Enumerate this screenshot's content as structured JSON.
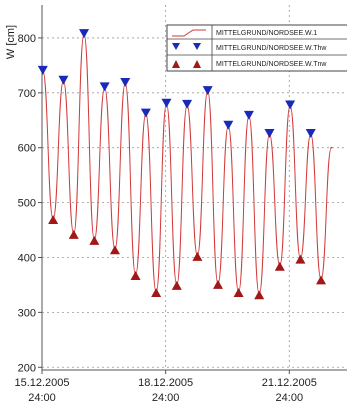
{
  "chart_data": {
    "type": "line",
    "ylabel": "W [cm]",
    "ylim": [
      195,
      860
    ],
    "yticks": [
      200,
      300,
      400,
      500,
      600,
      700,
      800
    ],
    "xlim": [
      0,
      7.4
    ],
    "xticks": [
      {
        "x": 0,
        "line1": "15.12.2005",
        "line2": "24:00"
      },
      {
        "x": 3,
        "line1": "18.12.2005",
        "line2": "24:00"
      },
      {
        "x": 6,
        "line1": "21.12.2005",
        "line2": "24:00"
      }
    ],
    "grid": true,
    "legend_position": "top-right",
    "colors": {
      "line": "#d23a3a",
      "high": "#1a2ab8",
      "low": "#a01818",
      "grid": "#9a9a9a"
    },
    "series": [
      {
        "name": "MITTELGRUND/NORDSEE.W.1",
        "style": "line",
        "x": [
          0.02,
          0.27,
          0.52,
          0.77,
          1.02,
          1.27,
          1.52,
          1.77,
          2.02,
          2.27,
          2.52,
          2.77,
          3.02,
          3.27,
          3.52,
          3.77,
          4.02,
          4.27,
          4.52,
          4.77,
          5.02,
          5.27,
          5.52,
          5.77,
          6.02,
          6.27,
          6.52,
          6.77,
          7.02
        ],
        "values": [
          740,
          470,
          722,
          443,
          807,
          432,
          710,
          415,
          718,
          368,
          662,
          337,
          680,
          350,
          678,
          403,
          703,
          352,
          640,
          337,
          658,
          333,
          625,
          385,
          677,
          398,
          625,
          360,
          600
        ]
      },
      {
        "name": "MITTELGRUND/NORDSEE.W.Thw",
        "style": "marker-down",
        "x": [
          0.02,
          0.52,
          1.02,
          1.52,
          2.02,
          2.52,
          3.02,
          3.52,
          4.02,
          4.52,
          5.02,
          5.52,
          6.02,
          6.52
        ],
        "values": [
          740,
          722,
          807,
          710,
          718,
          662,
          680,
          678,
          703,
          640,
          658,
          625,
          677,
          625
        ]
      },
      {
        "name": "MITTELGRUND/NORDSEE.W.Tnw",
        "style": "marker-up",
        "x": [
          0.27,
          0.77,
          1.27,
          1.77,
          2.27,
          2.77,
          3.27,
          3.77,
          4.27,
          4.77,
          5.27,
          5.77,
          6.27,
          6.77
        ],
        "values": [
          470,
          443,
          432,
          415,
          368,
          337,
          350,
          403,
          352,
          337,
          333,
          385,
          398,
          360
        ]
      }
    ]
  }
}
